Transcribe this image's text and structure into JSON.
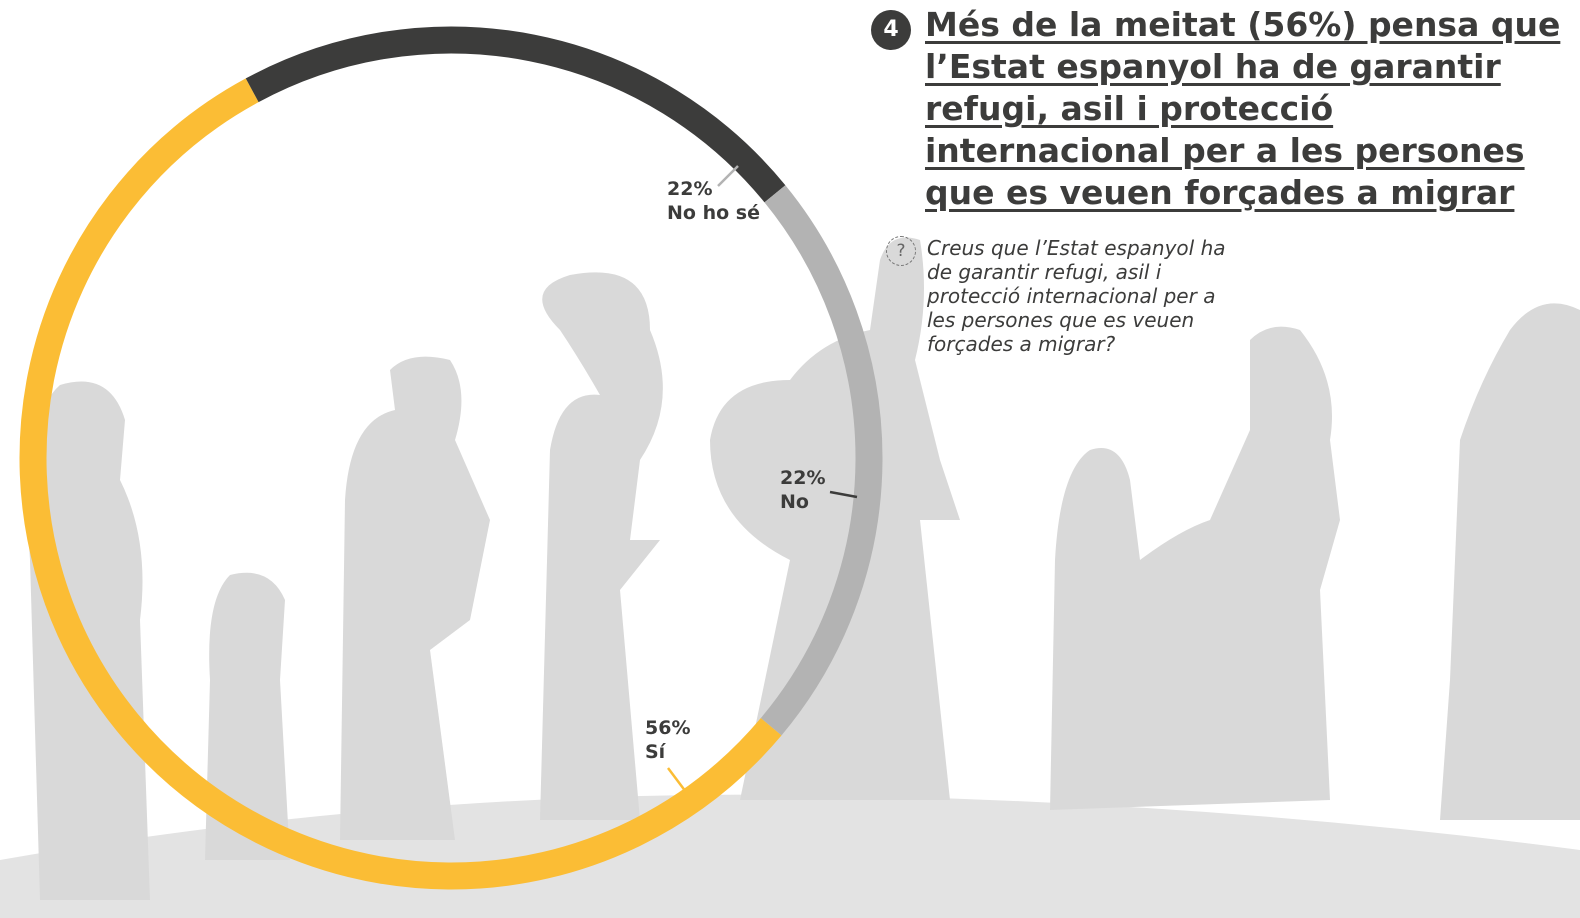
{
  "chart_data": {
    "type": "pie",
    "donut": true,
    "number": "4",
    "title": "Més de la meitat (56%) pensa que l’Estat espanyol ha de garantir refugi, asil i protecció internacional per a les persones que es veuen forçades a migrar",
    "icon": "?",
    "subtitle": "Creus que l’Estat espanyol ha de garantir refugi, asil i protecció internacional per a les persones que es veuen forçades a migrar?",
    "categories": [
      "Sí",
      "No",
      "No ho sé"
    ],
    "values": [
      56,
      22,
      22
    ],
    "value_labels": [
      "56%",
      "22%",
      "22%"
    ],
    "colors": [
      "#fbbd35",
      "#3c3c3b",
      "#b3b3b3"
    ]
  }
}
